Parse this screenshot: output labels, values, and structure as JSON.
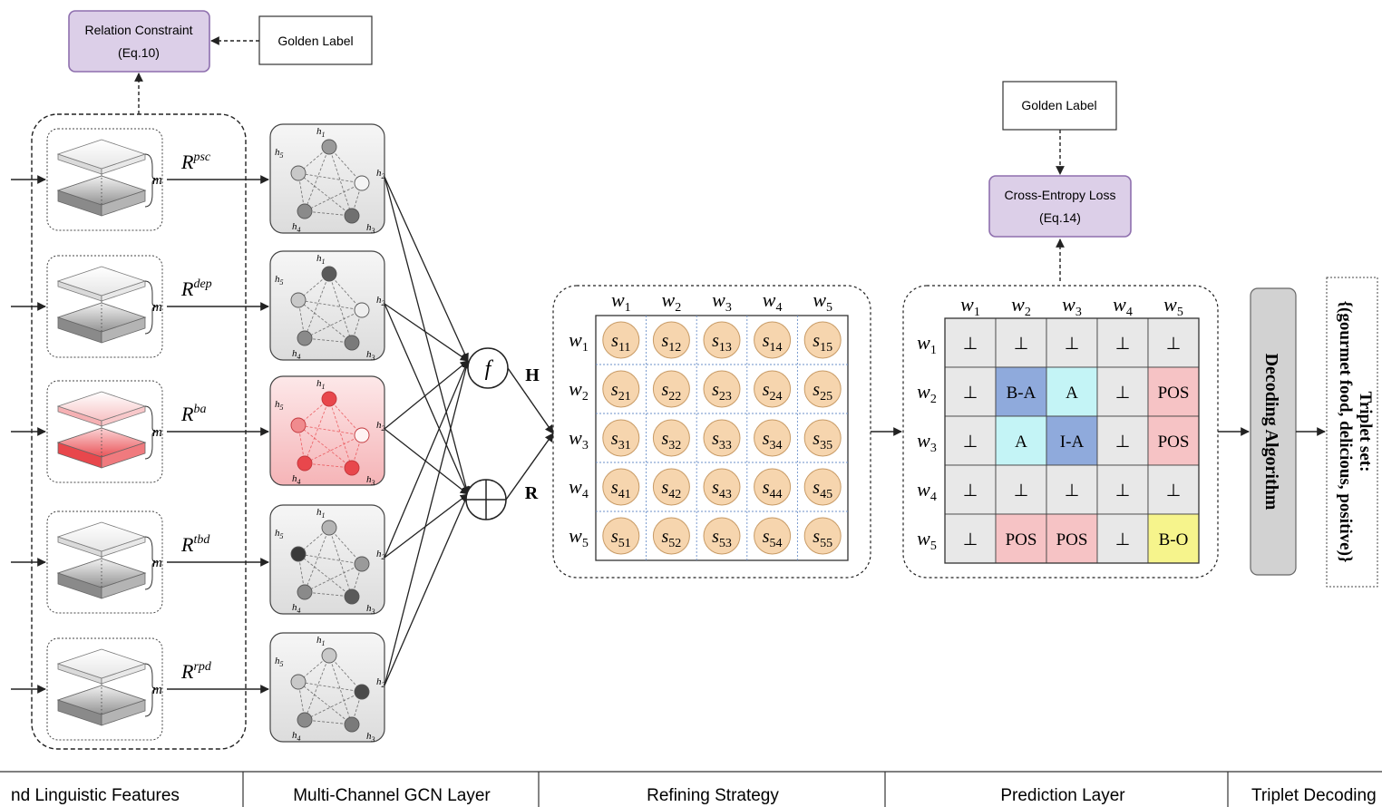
{
  "relation_constraint": {
    "line1": "Relation Constraint",
    "line2": "(Eq.10)"
  },
  "golden_label_top": "Golden Label",
  "golden_label_right": "Golden Label",
  "cross_entropy": {
    "line1": "Cross-Entropy Loss",
    "line2": "(Eq.14)"
  },
  "m_symbol": "m",
  "relations": [
    {
      "base": "R",
      "sup": "psc"
    },
    {
      "base": "R",
      "sup": "dep"
    },
    {
      "base": "R",
      "sup": "ba"
    },
    {
      "base": "R",
      "sup": "tbd"
    },
    {
      "base": "R",
      "sup": "rpd"
    }
  ],
  "node_labels": [
    "h1",
    "h2",
    "h3",
    "h4",
    "h5"
  ],
  "operators": {
    "f": "f",
    "H": "H",
    "R": "R"
  },
  "words": [
    "w1",
    "w2",
    "w3",
    "w4",
    "w5"
  ],
  "refine_cells": [
    [
      "s11",
      "s12",
      "s13",
      "s14",
      "s15"
    ],
    [
      "s21",
      "s22",
      "s23",
      "s24",
      "s25"
    ],
    [
      "s31",
      "s32",
      "s33",
      "s34",
      "s35"
    ],
    [
      "s41",
      "s42",
      "s43",
      "s44",
      "s45"
    ],
    [
      "s51",
      "s52",
      "s53",
      "s54",
      "s55"
    ]
  ],
  "pred_cells": [
    [
      "⊥",
      "⊥",
      "⊥",
      "⊥",
      "⊥"
    ],
    [
      "⊥",
      "B-A",
      "A",
      "⊥",
      "POS"
    ],
    [
      "⊥",
      "A",
      "I-A",
      "⊥",
      "POS"
    ],
    [
      "⊥",
      "⊥",
      "⊥",
      "⊥",
      "⊥"
    ],
    [
      "⊥",
      "POS",
      "POS",
      "⊥",
      "B-O"
    ]
  ],
  "colors": {
    "purple_fill": "#dccfe8",
    "purple_stroke": "#8e6fae",
    "cell_gray": "#e8e8e8",
    "cell_blue": "#8faadc",
    "cell_cyan": "#c4f4f6",
    "cell_pink": "#f6c3c5",
    "cell_yellow": "#f6f48c",
    "s_fill": "#f6d5ae",
    "s_stroke": "#c89b66",
    "red": "#e8474c",
    "decoding_fill": "#d2d2d2"
  },
  "decoding": "Decoding Algorithm",
  "triplet": {
    "line1": "Triplet set:",
    "line2": "{(gourmet food, delicious, positive)}"
  },
  "bottom_labels": [
    "nd Linguistic Features",
    "Multi-Channel GCN Layer",
    "Refining Strategy",
    "Prediction Layer",
    "Triplet Decoding"
  ]
}
